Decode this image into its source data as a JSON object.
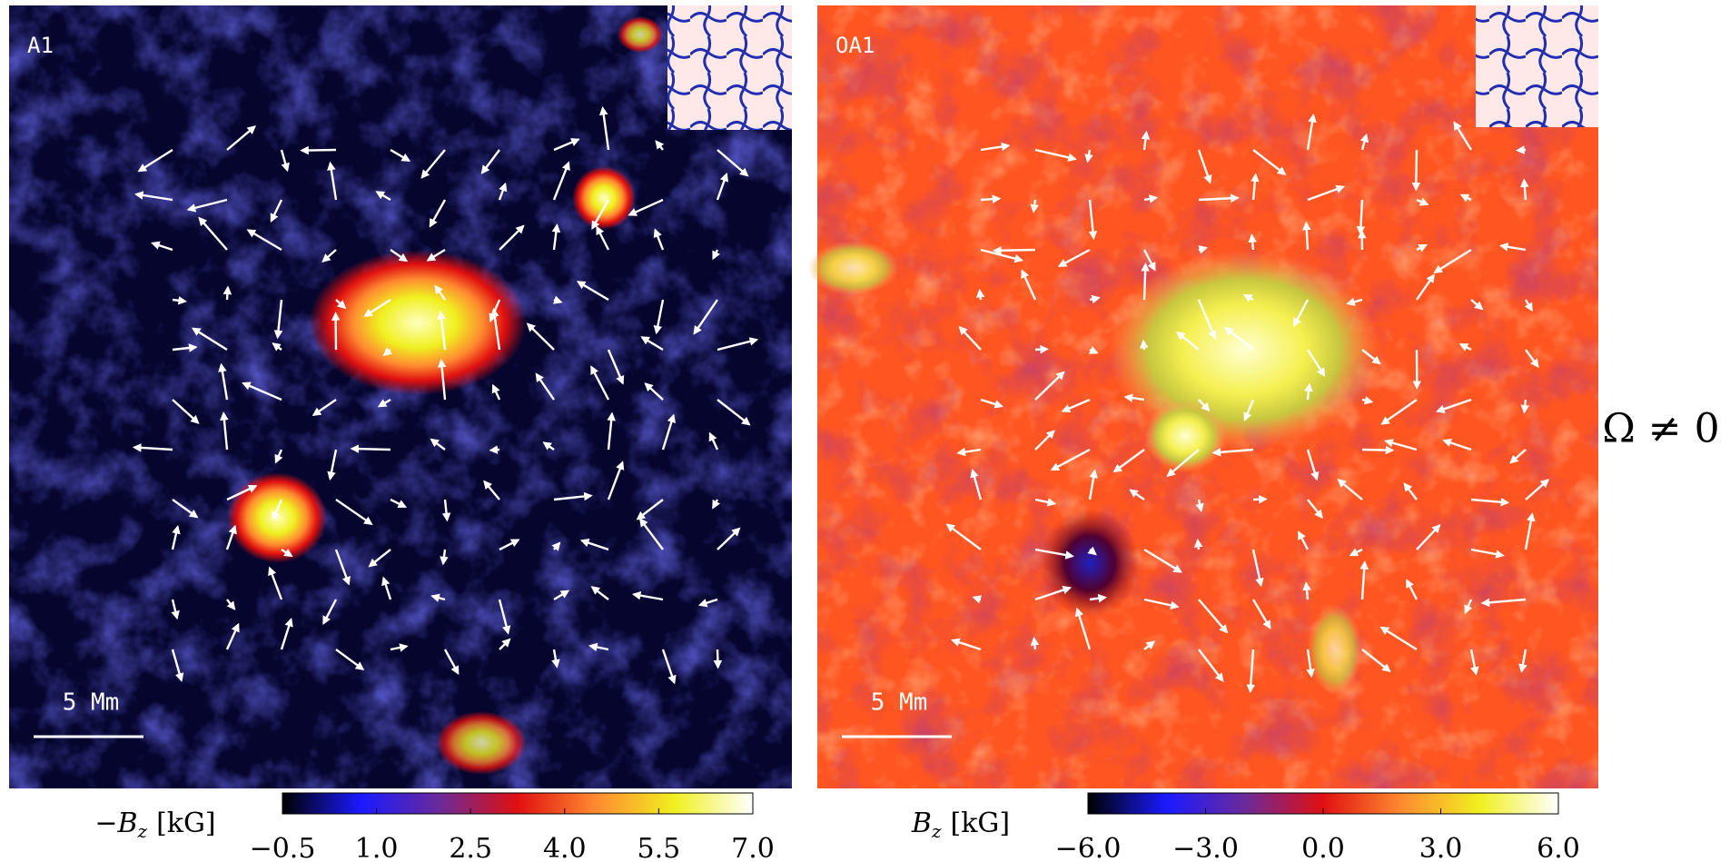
{
  "chart_data": [
    {
      "type": "heatmap",
      "panel_label": "A1",
      "scale_bar_label": "5 Mm",
      "colorbar_label": {
        "symbol": "−B",
        "subscript": "z",
        "unit": "[kG]"
      },
      "colors": [
        "#000000",
        "#1a1aff",
        "#6a2a9a",
        "#e01010",
        "#ff8a30",
        "#f0f020",
        "#ffffff"
      ],
      "clim": [
        -0.5,
        7.0
      ],
      "cticks": [
        {
          "value": -0.5,
          "label": "−0.5"
        },
        {
          "value": 1,
          "label": "1.0"
        },
        {
          "value": 2.5,
          "label": "2.5"
        },
        {
          "value": 4,
          "label": "4.0"
        },
        {
          "value": 5.5,
          "label": "5.5"
        },
        {
          "value": 7,
          "label": "7.0"
        }
      ]
    },
    {
      "type": "heatmap",
      "panel_label": "OA1",
      "scale_bar_label": "5 Mm",
      "colorbar_label": {
        "symbol": "B",
        "subscript": "z",
        "unit": "[kG]"
      },
      "colors": [
        "#000000",
        "#1a1aff",
        "#6a2a9a",
        "#e01010",
        "#ff8a30",
        "#f0f020",
        "#ffffff"
      ],
      "clim": [
        -6,
        6
      ],
      "cticks": [
        {
          "value": -6,
          "label": "−6.0"
        },
        {
          "value": -3,
          "label": "−3.0"
        },
        {
          "value": 0,
          "label": "0.0"
        },
        {
          "value": 3,
          "label": "3.0"
        },
        {
          "value": 6,
          "label": "6.0"
        }
      ]
    }
  ],
  "annotation": "Ω ≠ 0"
}
